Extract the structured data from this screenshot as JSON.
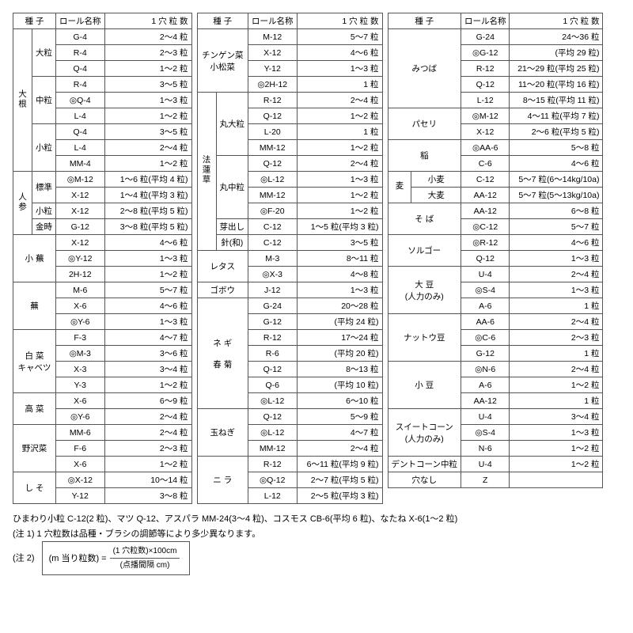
{
  "headers": {
    "seed": "種 子",
    "roll": "ロール名称",
    "grain": "1 穴 粒 数"
  },
  "colWidths": {
    "t1type": 30,
    "t1grain": 110,
    "t2type": 40,
    "t2grain": 108,
    "t3type": 50,
    "t3grain": 118
  },
  "table1": [
    {
      "seed": "大根",
      "seedSpan": 9,
      "type": "大粒",
      "typeSpan": 3,
      "roll": "G-4",
      "grain": "2～4 粒"
    },
    {
      "roll": "R-4",
      "grain": "2～3 粒"
    },
    {
      "roll": "Q-4",
      "grain": "1～2 粒"
    },
    {
      "type": "中粒",
      "typeSpan": 3,
      "roll": "R-4",
      "grain": "3～5 粒"
    },
    {
      "roll": "◎Q-4",
      "grain": "1～3 粒"
    },
    {
      "roll": "L-4",
      "grain": "1～2 粒"
    },
    {
      "type": "小粒",
      "typeSpan": 3,
      "roll": "Q-4",
      "grain": "3～5 粒"
    },
    {
      "roll": "L-4",
      "grain": "2～4 粒"
    },
    {
      "roll": "MM-4",
      "grain": "1～2 粒"
    },
    {
      "seed": "人参",
      "seedSpan": 4,
      "type": "標準",
      "typeSpan": 2,
      "roll": "◎M-12",
      "grain": "1～6 粒(平均 4 粒)"
    },
    {
      "roll": "X-12",
      "grain": "1～4 粒(平均 3 粒)"
    },
    {
      "type": "小粒",
      "roll": "X-12",
      "grain": "2～8 粒(平均 5 粒)"
    },
    {
      "type": "金時",
      "roll": "G-12",
      "grain": "3～8 粒(平均 5 粒)"
    },
    {
      "type": "小 蕪",
      "typeSpan": 3,
      "typeColspan": 2,
      "roll": "X-12",
      "grain": "4～6 粒"
    },
    {
      "roll": "◎Y-12",
      "grain": "1～3 粒"
    },
    {
      "roll": "2H-12",
      "grain": "1～2 粒"
    },
    {
      "type": "蕪",
      "typeSpan": 3,
      "typeColspan": 2,
      "roll": "M-6",
      "grain": "5～7 粒"
    },
    {
      "roll": "X-6",
      "grain": "4～6 粒"
    },
    {
      "roll": "◎Y-6",
      "grain": "1～3 粒"
    },
    {
      "type": "白 菜\nキャベツ",
      "typeSpan": 4,
      "typeColspan": 2,
      "roll": "F-3",
      "grain": "4～7 粒"
    },
    {
      "roll": "◎M-3",
      "grain": "3～6 粒"
    },
    {
      "roll": "X-3",
      "grain": "3～4 粒"
    },
    {
      "roll": "Y-3",
      "grain": "1～2 粒"
    },
    {
      "type": "高 菜",
      "typeSpan": 2,
      "typeColspan": 2,
      "roll": "X-6",
      "grain": "6～9 粒"
    },
    {
      "roll": "◎Y-6",
      "grain": "2～4 粒"
    },
    {
      "type": "野沢菜",
      "typeSpan": 3,
      "typeColspan": 2,
      "roll": "MM-6",
      "grain": "2～4 粒"
    },
    {
      "roll": "F-6",
      "grain": "2～3 粒"
    },
    {
      "roll": "X-6",
      "grain": "1～2 粒"
    },
    {
      "type": "し そ",
      "typeSpan": 2,
      "typeColspan": 2,
      "roll": "◎X-12",
      "grain": "10～14 粒"
    },
    {
      "roll": "Y-12",
      "grain": "3～8 粒"
    }
  ],
  "table2": [
    {
      "type": "チンゲン菜\n小松菜",
      "typeSpan": 4,
      "typeColspan": 2,
      "roll": "M-12",
      "grain": "5～7 粒"
    },
    {
      "roll": "X-12",
      "grain": "4～6 粒"
    },
    {
      "roll": "Y-12",
      "grain": "1～3 粒"
    },
    {
      "roll": "◎2H-12",
      "grain": "1 粒"
    },
    {
      "seed": "法蓮草",
      "seedSpan": 10,
      "type": "丸大粒",
      "typeSpan": 4,
      "roll": "R-12",
      "grain": "2～4 粒"
    },
    {
      "roll": "Q-12",
      "grain": "1～2 粒"
    },
    {
      "roll": "L-20",
      "grain": "1 粒"
    },
    {
      "roll": "MM-12",
      "grain": "1～2 粒"
    },
    {
      "type": "丸中粒",
      "typeSpan": 4,
      "roll": "Q-12",
      "grain": "2～4 粒"
    },
    {
      "roll": "◎L-12",
      "grain": "1～3 粒"
    },
    {
      "roll": "MM-12",
      "grain": "1～2 粒"
    },
    {
      "roll": "◎F-20",
      "grain": "1～2 粒"
    },
    {
      "type": "芽出し",
      "roll": "C-12",
      "grain": "1～5 粒(平均 3 粒)"
    },
    {
      "type": "針(和)",
      "roll": "C-12",
      "grain": "3～5 粒"
    },
    {
      "type": "レタス",
      "typeSpan": 2,
      "typeColspan": 2,
      "roll": "M-3",
      "grain": "8～11 粒"
    },
    {
      "roll": "◎X-3",
      "grain": "4～8 粒"
    },
    {
      "type": "ゴボウ",
      "typeColspan": 2,
      "roll": "J-12",
      "grain": "1～3 粒"
    },
    {
      "type": "ネ ギ\n\n春 菊",
      "typeSpan": 7,
      "typeColspan": 2,
      "roll": "G-24",
      "grain": "20～28 粒"
    },
    {
      "roll": "G-12",
      "grain": "(平均 24 粒)"
    },
    {
      "roll": "R-12",
      "grain": "17～24 粒"
    },
    {
      "roll": "R-6",
      "grain": "(平均 20 粒)"
    },
    {
      "roll": "Q-12",
      "grain": "8～13 粒"
    },
    {
      "roll": "Q-6",
      "grain": "(平均 10 粒)"
    },
    {
      "roll": "◎L-12",
      "grain": "6～10 粒"
    },
    {
      "type": "玉ねぎ",
      "typeSpan": 3,
      "typeColspan": 2,
      "roll": "Q-12",
      "grain": "5～9 粒"
    },
    {
      "roll": "◎L-12",
      "grain": "4～7 粒"
    },
    {
      "roll": "MM-12",
      "grain": "2～4 粒"
    },
    {
      "type": "ニ ラ",
      "typeSpan": 3,
      "typeColspan": 2,
      "roll": "R-12",
      "grain": "6～11 粒(平均 9 粒)"
    },
    {
      "roll": "◎Q-12",
      "grain": "2～7 粒(平均 5 粒)"
    },
    {
      "roll": "L-12",
      "grain": "2～5 粒(平均 3 粒)"
    }
  ],
  "table3": [
    {
      "type": "みつば",
      "typeSpan": 5,
      "typeColspan": 2,
      "roll": "G-24",
      "grain": "24～36 粒"
    },
    {
      "roll": "◎G-12",
      "grain": "(平均 29 粒)"
    },
    {
      "roll": "R-12",
      "grain": "21～29 粒(平均 25 粒)"
    },
    {
      "roll": "Q-12",
      "grain": "11～20 粒(平均 16 粒)"
    },
    {
      "roll": "L-12",
      "grain": "8～15 粒(平均 11 粒)"
    },
    {
      "type": "パセリ",
      "typeSpan": 2,
      "typeColspan": 2,
      "roll": "◎M-12",
      "grain": "4～11 粒(平均 7 粒)"
    },
    {
      "roll": "X-12",
      "grain": "2～6 粒(平均 5 粒)"
    },
    {
      "type": "稲",
      "typeSpan": 2,
      "typeColspan": 2,
      "roll": "◎AA-6",
      "grain": "5～8 粒"
    },
    {
      "roll": "C-6",
      "grain": "4～6 粒"
    },
    {
      "seed": "麦",
      "seedSpan": 2,
      "type": "小麦",
      "roll": "C-12",
      "grain": "5～7 粒(6～14kg/10a)"
    },
    {
      "type": "大麦",
      "roll": "AA-12",
      "grain": "5～7 粒(5～13kg/10a)"
    },
    {
      "type": "そ ば",
      "typeSpan": 2,
      "typeColspan": 2,
      "roll": "AA-12",
      "grain": "6～8 粒"
    },
    {
      "roll": "◎C-12",
      "grain": "5～7 粒"
    },
    {
      "type": "ソルゴー",
      "typeSpan": 2,
      "typeColspan": 2,
      "roll": "◎R-12",
      "grain": "4～6 粒"
    },
    {
      "roll": "Q-12",
      "grain": "1～3 粒"
    },
    {
      "type": "大 豆\n(人力のみ)",
      "typeSpan": 3,
      "typeColspan": 2,
      "roll": "U-4",
      "grain": "2～4 粒"
    },
    {
      "roll": "◎S-4",
      "grain": "1～3 粒"
    },
    {
      "roll": "A-6",
      "grain": "1 粒"
    },
    {
      "type": "ナットウ豆",
      "typeSpan": 3,
      "typeColspan": 2,
      "roll": "AA-6",
      "grain": "2～4 粒"
    },
    {
      "roll": "◎C-6",
      "grain": "2～3 粒"
    },
    {
      "roll": "G-12",
      "grain": "1 粒"
    },
    {
      "type": "小 豆",
      "typeSpan": 3,
      "typeColspan": 2,
      "roll": "◎N-6",
      "grain": "2～4 粒"
    },
    {
      "roll": "A-6",
      "grain": "1～2 粒"
    },
    {
      "roll": "AA-12",
      "grain": "1 粒"
    },
    {
      "type": "スイートコーン\n(人力のみ)",
      "typeSpan": 3,
      "typeColspan": 2,
      "roll": "U-4",
      "grain": "3～4 粒"
    },
    {
      "roll": "◎S-4",
      "grain": "1～3 粒"
    },
    {
      "roll": "N-6",
      "grain": "1～2 粒"
    },
    {
      "type": "デントコーン中粒",
      "typeColspan": 2,
      "roll": "U-4",
      "grain": "1～2 粒"
    },
    {
      "type": "穴なし",
      "typeColspan": 2,
      "roll": "Z",
      "grain": ""
    }
  ],
  "footnotes": {
    "line1": "ひまわり小粒 C-12(2 粒)、マツ Q-12、アスパラ MM-24(3～4 粒)、コスモス CB-6(平均 6 粒)、なたね X-6(1～2 粒)",
    "note1": "(注 1) 1 穴粒数は品種・ブラシの調節等により多少異なります。",
    "note2label": "(注 2)",
    "formula_lhs": "(m 当り粒数) =",
    "formula_num": "(1 穴粒数)×100cm",
    "formula_den": "(点播間隔 cm)"
  }
}
